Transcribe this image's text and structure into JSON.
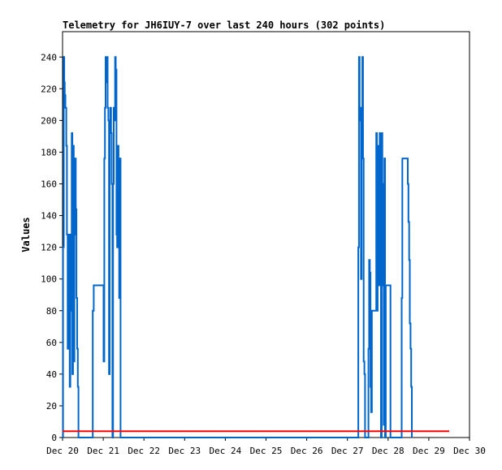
{
  "chart_data": {
    "type": "line",
    "title": "Telemetry for JH6IUY-7 over last 240 hours (302 points)",
    "xlabel": "",
    "ylabel": "Values",
    "xlim": [
      0,
      240
    ],
    "ylim": [
      0,
      256
    ],
    "x_tick_values": [
      0,
      24,
      48,
      72,
      96,
      120,
      144,
      168,
      192,
      216,
      240
    ],
    "x_tick_labels": [
      "Dec 20",
      "Dec 21",
      "Dec 22",
      "Dec 23",
      "Dec 24",
      "Dec 25",
      "Dec 26",
      "Dec 27",
      "Dec 28",
      "Dec 29",
      "Dec 30"
    ],
    "y_ticks": [
      0,
      20,
      40,
      60,
      80,
      100,
      120,
      140,
      160,
      180,
      200,
      220,
      240
    ],
    "grid": false,
    "series": [
      {
        "name": "",
        "color": "#0066cc",
        "step": true,
        "points": [
          [
            0.0,
            0
          ],
          [
            0.3,
            120
          ],
          [
            0.7,
            240
          ],
          [
            1.0,
            224
          ],
          [
            1.3,
            216
          ],
          [
            1.7,
            208
          ],
          [
            2.2,
            184
          ],
          [
            2.6,
            128
          ],
          [
            3.0,
            56
          ],
          [
            3.4,
            128
          ],
          [
            3.8,
            96
          ],
          [
            4.2,
            32
          ],
          [
            4.6,
            128
          ],
          [
            5.0,
            80
          ],
          [
            5.4,
            192
          ],
          [
            5.8,
            40
          ],
          [
            6.2,
            184
          ],
          [
            6.6,
            48
          ],
          [
            7.0,
            128
          ],
          [
            7.4,
            176
          ],
          [
            7.8,
            144
          ],
          [
            8.2,
            88
          ],
          [
            8.6,
            56
          ],
          [
            9.0,
            32
          ],
          [
            9.4,
            0
          ],
          [
            17.3,
            0
          ],
          [
            17.8,
            80
          ],
          [
            18.4,
            96
          ],
          [
            22.5,
            96
          ],
          [
            23.8,
            96
          ],
          [
            24.2,
            48
          ],
          [
            24.6,
            176
          ],
          [
            25.0,
            208
          ],
          [
            25.4,
            240
          ],
          [
            25.8,
            224
          ],
          [
            26.2,
            240
          ],
          [
            26.6,
            208
          ],
          [
            27.0,
            200
          ],
          [
            27.4,
            40
          ],
          [
            27.8,
            192
          ],
          [
            28.2,
            208
          ],
          [
            28.6,
            192
          ],
          [
            29.0,
            160
          ],
          [
            29.4,
            0
          ],
          [
            29.8,
            160
          ],
          [
            30.2,
            208
          ],
          [
            30.6,
            200
          ],
          [
            31.0,
            240
          ],
          [
            31.4,
            232
          ],
          [
            31.8,
            128
          ],
          [
            32.2,
            120
          ],
          [
            32.6,
            184
          ],
          [
            33.0,
            176
          ],
          [
            33.4,
            88
          ],
          [
            33.8,
            176
          ],
          [
            34.2,
            0
          ],
          [
            174.0,
            0
          ],
          [
            174.4,
            120
          ],
          [
            174.8,
            240
          ],
          [
            175.2,
            200
          ],
          [
            175.6,
            208
          ],
          [
            176.0,
            100
          ],
          [
            176.4,
            192
          ],
          [
            176.8,
            240
          ],
          [
            177.2,
            176
          ],
          [
            177.6,
            48
          ],
          [
            178.0,
            40
          ],
          [
            178.4,
            0
          ],
          [
            180.0,
            0
          ],
          [
            180.4,
            56
          ],
          [
            180.8,
            112
          ],
          [
            181.2,
            104
          ],
          [
            181.6,
            32
          ],
          [
            182.0,
            16
          ],
          [
            182.4,
            80
          ],
          [
            184.6,
            80
          ],
          [
            185.0,
            192
          ],
          [
            185.4,
            80
          ],
          [
            185.8,
            176
          ],
          [
            186.2,
            184
          ],
          [
            186.6,
            96
          ],
          [
            187.0,
            192
          ],
          [
            187.4,
            96
          ],
          [
            187.8,
            0
          ],
          [
            188.2,
            192
          ],
          [
            188.6,
            96
          ],
          [
            189.0,
            160
          ],
          [
            189.4,
            8
          ],
          [
            189.8,
            176
          ],
          [
            190.2,
            0
          ],
          [
            190.6,
            96
          ],
          [
            193.0,
            96
          ],
          [
            193.4,
            0
          ],
          [
            199.6,
            0
          ],
          [
            200.0,
            88
          ],
          [
            200.4,
            176
          ],
          [
            203.2,
            176
          ],
          [
            203.6,
            160
          ],
          [
            204.0,
            136
          ],
          [
            204.4,
            112
          ],
          [
            204.8,
            72
          ],
          [
            205.2,
            56
          ],
          [
            205.6,
            32
          ],
          [
            206.0,
            0
          ]
        ]
      },
      {
        "name": "",
        "color": "#ff0000",
        "step": false,
        "points": [
          [
            0,
            4
          ],
          [
            228,
            4
          ]
        ]
      }
    ]
  }
}
